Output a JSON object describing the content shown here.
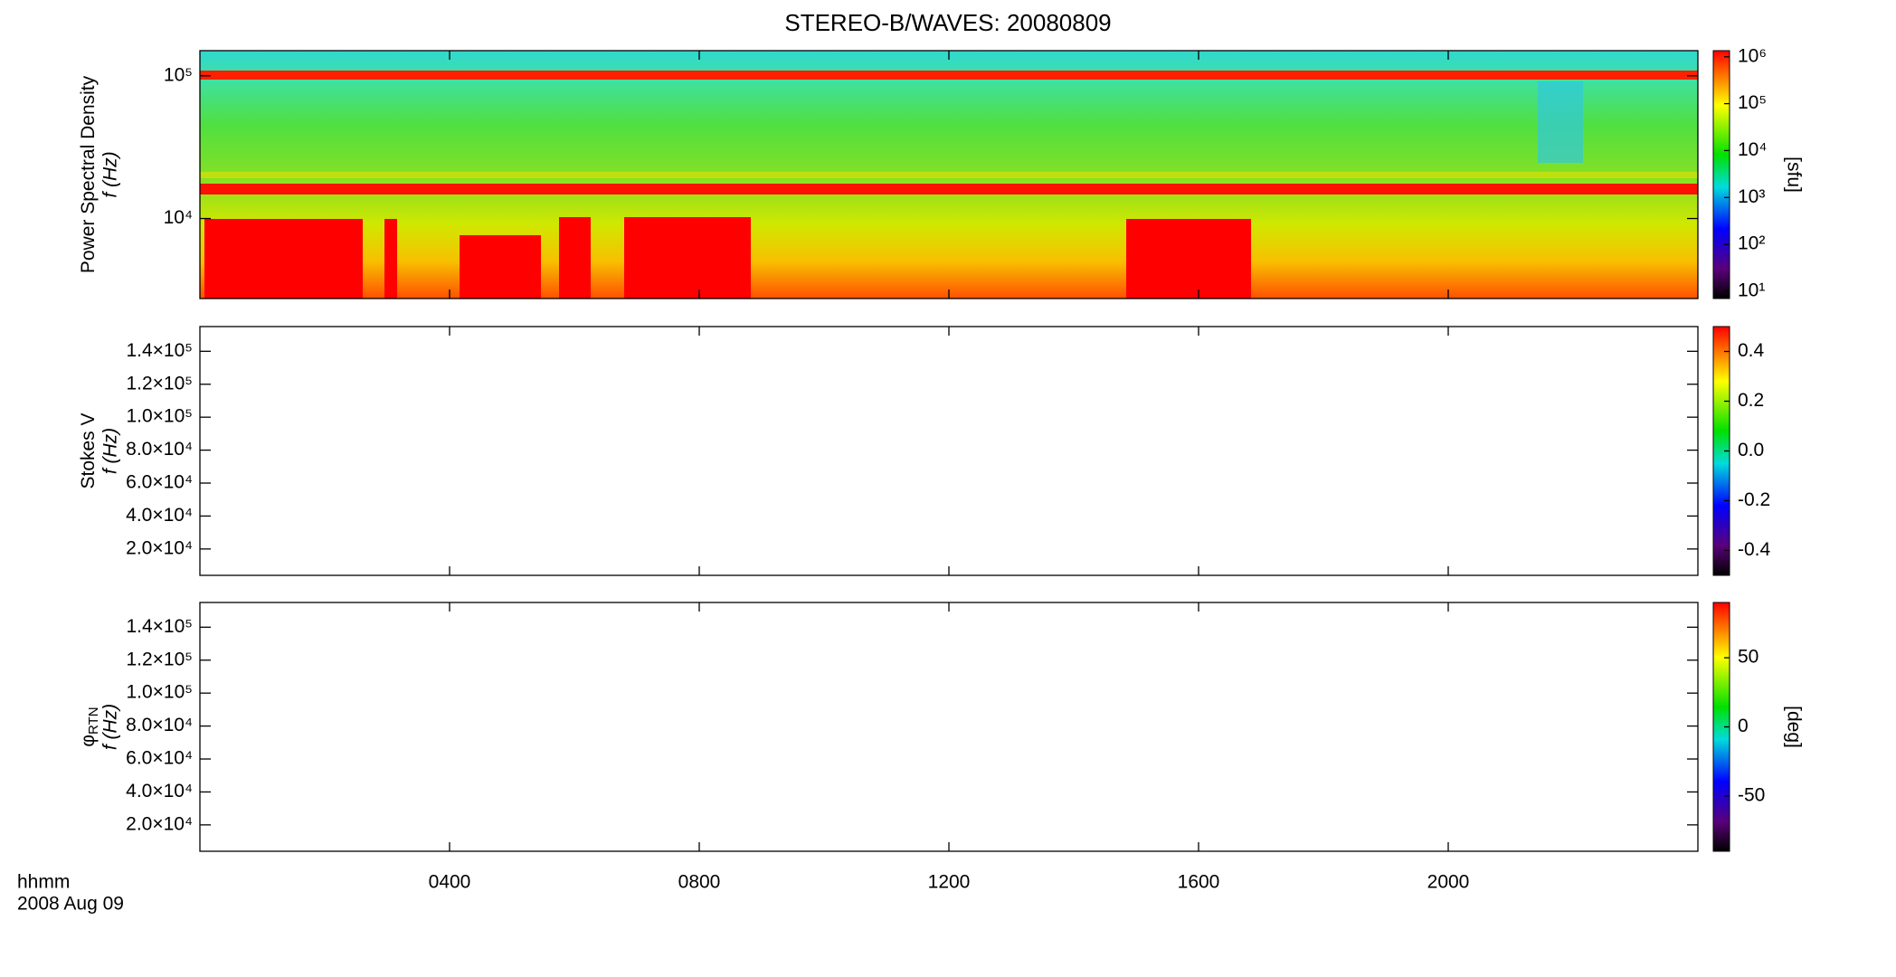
{
  "chart_data": {
    "type": "spectrogram",
    "title": "STEREO-B/WAVES: 20080809",
    "xlabel": "hhmm",
    "xsublabel": "2008 Aug 09",
    "xlim": [
      0,
      24
    ],
    "xticks": [
      {
        "value": 4,
        "label": "0400"
      },
      {
        "value": 8,
        "label": "0800"
      },
      {
        "value": 12,
        "label": "1200"
      },
      {
        "value": 16,
        "label": "1600"
      },
      {
        "value": 20,
        "label": "2000"
      }
    ],
    "panels": [
      {
        "ylabel": "Power Spectral Density",
        "yunit": "f (Hz)",
        "yscale": "log",
        "ylim": [
          2750,
          150000
        ],
        "yticks": [
          {
            "value": 10000,
            "label": "10⁴"
          },
          {
            "value": 100000,
            "label": "10⁵"
          }
        ],
        "cscale": "log",
        "clim": [
          7,
          1350000
        ],
        "cticks": [
          {
            "value": 10,
            "label": "10¹"
          },
          {
            "value": 100,
            "label": "10²"
          },
          {
            "value": 1000,
            "label": "10³"
          },
          {
            "value": 10000,
            "label": "10⁴"
          },
          {
            "value": 100000,
            "label": "10⁵"
          },
          {
            "value": 1000000,
            "label": "10⁶"
          }
        ],
        "clabel": "[sfu]"
      },
      {
        "ylabel": "Stokes V",
        "yunit": "f (Hz)",
        "yscale": "linear",
        "ylim": [
          4000,
          155000
        ],
        "yticks": [
          {
            "value": 20000,
            "label": "2.0×10⁴"
          },
          {
            "value": 40000,
            "label": "4.0×10⁴"
          },
          {
            "value": 60000,
            "label": "6.0×10⁴"
          },
          {
            "value": 80000,
            "label": "8.0×10⁴"
          },
          {
            "value": 100000,
            "label": "1.0×10⁵"
          },
          {
            "value": 120000,
            "label": "1.2×10⁵"
          },
          {
            "value": 140000,
            "label": "1.4×10⁵"
          }
        ],
        "cscale": "linear",
        "clim": [
          -0.5,
          0.5
        ],
        "cticks": [
          -0.4,
          -0.2,
          {
            "value": 0,
            "label": "0.0"
          },
          0.2,
          0.4
        ]
      },
      {
        "ylabel": "φ",
        "ylabel_sub": "RTN",
        "yunit": "f (Hz)",
        "yscale": "linear",
        "ylim": [
          4000,
          155000
        ],
        "yticks": [
          {
            "value": 20000,
            "label": "2.0×10⁴"
          },
          {
            "value": 40000,
            "label": "4.0×10⁴"
          },
          {
            "value": 60000,
            "label": "6.0×10⁴"
          },
          {
            "value": 80000,
            "label": "8.0×10⁴"
          },
          {
            "value": 100000,
            "label": "1.0×10⁵"
          },
          {
            "value": 120000,
            "label": "1.2×10⁵"
          },
          {
            "value": 140000,
            "label": "1.4×10⁵"
          }
        ],
        "cscale": "linear",
        "clim": [
          -90,
          90
        ],
        "cticks": [
          -50,
          0,
          50
        ],
        "clabel": "[deg]"
      }
    ]
  }
}
